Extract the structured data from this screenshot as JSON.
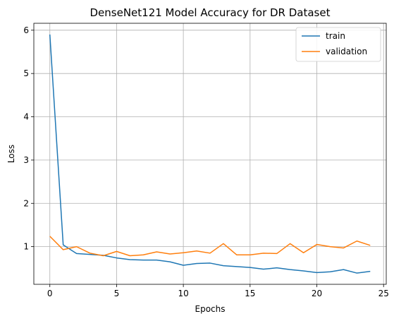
{
  "chart_data": {
    "type": "line",
    "title": "DenseNet121 Model Accuracy for DR Dataset",
    "xlabel": "Epochs",
    "ylabel": "Loss",
    "xlim": [
      -1.2,
      25.2
    ],
    "ylim": [
      0.13,
      6.16
    ],
    "xticks": [
      0,
      5,
      10,
      15,
      20,
      25
    ],
    "yticks": [
      1,
      2,
      3,
      4,
      5,
      6
    ],
    "grid": true,
    "legend_position": "top-right",
    "x": [
      0,
      1,
      2,
      3,
      4,
      5,
      6,
      7,
      8,
      9,
      10,
      11,
      12,
      13,
      14,
      15,
      16,
      17,
      18,
      19,
      20,
      21,
      22,
      23,
      24
    ],
    "series": [
      {
        "name": "train",
        "color": "#1f77b4",
        "values": [
          5.9,
          1.04,
          0.84,
          0.82,
          0.8,
          0.74,
          0.7,
          0.69,
          0.69,
          0.65,
          0.57,
          0.61,
          0.62,
          0.56,
          0.54,
          0.52,
          0.48,
          0.51,
          0.47,
          0.44,
          0.4,
          0.42,
          0.47,
          0.39,
          0.43
        ]
      },
      {
        "name": "validation",
        "color": "#ff7f0e",
        "values": [
          1.24,
          0.93,
          1.0,
          0.85,
          0.79,
          0.89,
          0.79,
          0.81,
          0.88,
          0.83,
          0.86,
          0.9,
          0.85,
          1.07,
          0.81,
          0.81,
          0.85,
          0.84,
          1.07,
          0.86,
          1.05,
          1.0,
          0.97,
          1.13,
          1.03
        ]
      }
    ]
  }
}
